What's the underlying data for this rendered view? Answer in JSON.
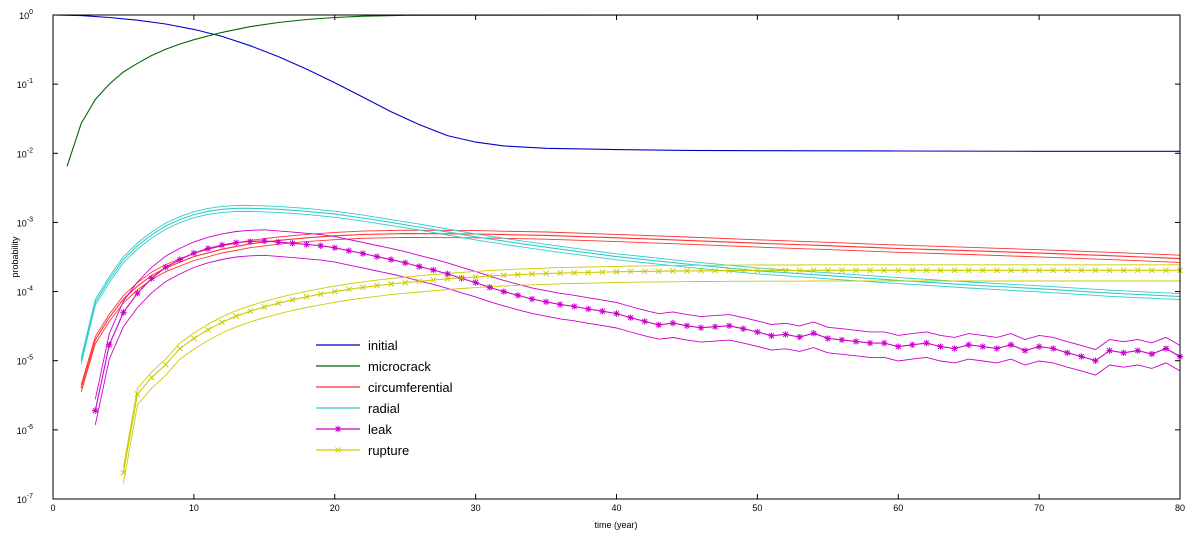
{
  "chart_data": {
    "type": "line",
    "xlabel": "time (year)",
    "ylabel": "probability",
    "xlim": [
      0,
      80
    ],
    "ylim": [
      1e-07,
      1
    ],
    "yscale": "log",
    "xticks": [
      0,
      10,
      20,
      30,
      40,
      50,
      60,
      70,
      80
    ],
    "yticks": [
      {
        "value": 1e-07,
        "mantissa": "10",
        "exp": "-7"
      },
      {
        "value": 1e-06,
        "mantissa": "10",
        "exp": "-6"
      },
      {
        "value": 1e-05,
        "mantissa": "10",
        "exp": "-5"
      },
      {
        "value": 0.0001,
        "mantissa": "10",
        "exp": "-4"
      },
      {
        "value": 0.001,
        "mantissa": "10",
        "exp": "-3"
      },
      {
        "value": 0.01,
        "mantissa": "10",
        "exp": "-2"
      },
      {
        "value": 0.1,
        "mantissa": "10",
        "exp": "-1"
      },
      {
        "value": 1,
        "mantissa": "10",
        "exp": "0"
      }
    ],
    "grid": false,
    "legend_position": "lower-left",
    "series": [
      {
        "name": "initial",
        "color": "#0000cc",
        "marker": "none",
        "bands": false,
        "x": [
          0,
          2,
          4,
          6,
          8,
          10,
          12,
          14,
          16,
          18,
          20,
          22,
          24,
          26,
          28,
          30,
          32,
          35,
          40,
          45,
          50,
          60,
          70,
          80
        ],
        "y": [
          1,
          0.98,
          0.92,
          0.84,
          0.74,
          0.62,
          0.49,
          0.36,
          0.25,
          0.165,
          0.105,
          0.065,
          0.04,
          0.026,
          0.018,
          0.0145,
          0.0128,
          0.0118,
          0.0113,
          0.011,
          0.0109,
          0.0108,
          0.0107,
          0.0107
        ]
      },
      {
        "name": "microcrack",
        "color": "#006600",
        "marker": "none",
        "bands": false,
        "x": [
          1,
          2,
          3,
          4,
          5,
          6,
          7,
          8,
          9,
          10,
          12,
          14,
          16,
          18,
          20,
          22,
          25,
          30,
          40,
          50,
          60,
          70,
          80
        ],
        "y": [
          0.0065,
          0.027,
          0.06,
          0.1,
          0.15,
          0.2,
          0.26,
          0.32,
          0.38,
          0.44,
          0.56,
          0.68,
          0.78,
          0.86,
          0.92,
          0.96,
          0.99,
          0.995,
          0.996,
          0.996,
          0.996,
          0.996,
          0.996
        ]
      },
      {
        "name": "circumferential",
        "color": "#ff3333",
        "marker": "none",
        "bands": true,
        "x": [
          2,
          3,
          4,
          5,
          6,
          7,
          8,
          10,
          12,
          14,
          16,
          18,
          20,
          22,
          25,
          30,
          35,
          40,
          45,
          50,
          55,
          60,
          65,
          70,
          75,
          80
        ],
        "y": [
          4e-06,
          2e-05,
          4.2e-05,
          7.8e-05,
          0.00012,
          0.00017,
          0.00022,
          0.00032,
          0.00041,
          0.00049,
          0.00055,
          0.0006,
          0.00064,
          0.00067,
          0.00069,
          0.00068,
          0.00065,
          0.0006,
          0.00055,
          0.0005,
          0.00046,
          0.00042,
          0.00039,
          0.00036,
          0.00033,
          0.0003
        ]
      },
      {
        "name": "radial",
        "color": "#33cccc",
        "marker": "none",
        "bands": true,
        "x": [
          2,
          3,
          4,
          5,
          6,
          7,
          8,
          9,
          10,
          11,
          12,
          13,
          14,
          15,
          16,
          18,
          20,
          22,
          24,
          26,
          28,
          30,
          33,
          36,
          40,
          45,
          50,
          55,
          60,
          65,
          70,
          75,
          80
        ],
        "y": [
          1e-05,
          7e-05,
          0.00015,
          0.00029,
          0.00046,
          0.00066,
          0.00089,
          0.0011,
          0.0013,
          0.00145,
          0.00155,
          0.0016,
          0.0016,
          0.00158,
          0.00155,
          0.00145,
          0.00132,
          0.00116,
          0.001,
          0.00086,
          0.00073,
          0.00062,
          0.0005,
          0.00041,
          0.00032,
          0.00025,
          0.0002,
          0.00017,
          0.000145,
          0.000125,
          0.00011,
          9.5e-05,
          8.5e-05
        ]
      },
      {
        "name": "leak",
        "color": "#cc00cc",
        "marker": "star",
        "bands": true,
        "x": [
          3,
          4,
          5,
          6,
          7,
          8,
          9,
          10,
          11,
          12,
          13,
          14,
          15,
          16,
          17,
          18,
          19,
          20,
          21,
          22,
          23,
          24,
          25,
          26,
          27,
          28,
          29,
          30,
          31,
          32,
          33,
          34,
          35,
          36,
          37,
          38,
          39,
          40,
          41,
          42,
          43,
          44,
          45,
          46,
          47,
          48,
          49,
          50,
          51,
          52,
          53,
          54,
          55,
          56,
          57,
          58,
          59,
          60,
          61,
          62,
          63,
          64,
          65,
          66,
          67,
          68,
          69,
          70,
          71,
          72,
          73,
          74,
          75,
          76,
          77,
          78,
          79,
          80
        ],
        "y": [
          1.9e-06,
          1.7e-05,
          5e-05,
          9.5e-05,
          0.000155,
          0.000225,
          0.00029,
          0.00036,
          0.00042,
          0.00047,
          0.00051,
          0.00053,
          0.00054,
          0.00052,
          0.0005,
          0.00048,
          0.00046,
          0.00043,
          0.00039,
          0.000355,
          0.00032,
          0.00029,
          0.00026,
          0.00023,
          0.000205,
          0.00018,
          0.000155,
          0.000135,
          0.000115,
          0.0001,
          8.8e-05,
          7.8e-05,
          7.1e-05,
          6.5e-05,
          6.1e-05,
          5.6e-05,
          5.2e-05,
          4.8e-05,
          4.2e-05,
          3.7e-05,
          3.3e-05,
          3.5e-05,
          3.2e-05,
          3e-05,
          3.1e-05,
          3.2e-05,
          2.9e-05,
          2.6e-05,
          2.3e-05,
          2.4e-05,
          2.2e-05,
          2.5e-05,
          2.1e-05,
          2e-05,
          1.9e-05,
          1.8e-05,
          1.8e-05,
          1.6e-05,
          1.7e-05,
          1.8e-05,
          1.6e-05,
          1.5e-05,
          1.7e-05,
          1.6e-05,
          1.5e-05,
          1.7e-05,
          1.4e-05,
          1.6e-05,
          1.5e-05,
          1.3e-05,
          1.15e-05,
          1e-05,
          1.4e-05,
          1.3e-05,
          1.4e-05,
          1.25e-05,
          1.5e-05,
          1.15e-05
        ]
      },
      {
        "name": "rupture",
        "color": "#cccc00",
        "marker": "x",
        "bands": true,
        "x": [
          5,
          6,
          7,
          8,
          9,
          10,
          11,
          12,
          13,
          14,
          15,
          16,
          17,
          18,
          19,
          20,
          21,
          22,
          23,
          24,
          25,
          26,
          27,
          28,
          29,
          30,
          31,
          32,
          33,
          34,
          35,
          36,
          37,
          38,
          39,
          40,
          41,
          42,
          43,
          44,
          45,
          46,
          47,
          48,
          49,
          50,
          51,
          52,
          53,
          54,
          55,
          56,
          57,
          58,
          59,
          60,
          61,
          62,
          63,
          64,
          65,
          66,
          67,
          68,
          69,
          70,
          71,
          72,
          73,
          74,
          75,
          76,
          77,
          78,
          79,
          80
        ],
        "y": [
          2.4e-07,
          3.3e-06,
          5.7e-06,
          8.8e-06,
          1.5e-05,
          2.1e-05,
          2.8e-05,
          3.6e-05,
          4.4e-05,
          5.2e-05,
          6e-05,
          6.8e-05,
          7.6e-05,
          8.4e-05,
          9.2e-05,
          0.0001,
          0.000108,
          0.000115,
          0.000122,
          0.000129,
          0.000135,
          0.000141,
          0.000147,
          0.000153,
          0.000158,
          0.000163,
          0.000168,
          0.000172,
          0.000176,
          0.000179,
          0.000182,
          0.000185,
          0.000187,
          0.000189,
          0.000191,
          0.000193,
          0.000195,
          0.000196,
          0.000197,
          0.000198,
          0.000199,
          0.0002,
          0.0002,
          0.000201,
          0.000201,
          0.000202,
          0.000202,
          0.000202,
          0.000202,
          0.000203,
          0.000203,
          0.000203,
          0.000203,
          0.000203,
          0.000203,
          0.000203,
          0.000203,
          0.000203,
          0.000203,
          0.000203,
          0.000203,
          0.000203,
          0.000203,
          0.000203,
          0.000203,
          0.000203,
          0.000203,
          0.000203,
          0.000203,
          0.000203,
          0.000203,
          0.000203,
          0.000203,
          0.000203,
          0.000203,
          0.000203
        ]
      }
    ]
  }
}
